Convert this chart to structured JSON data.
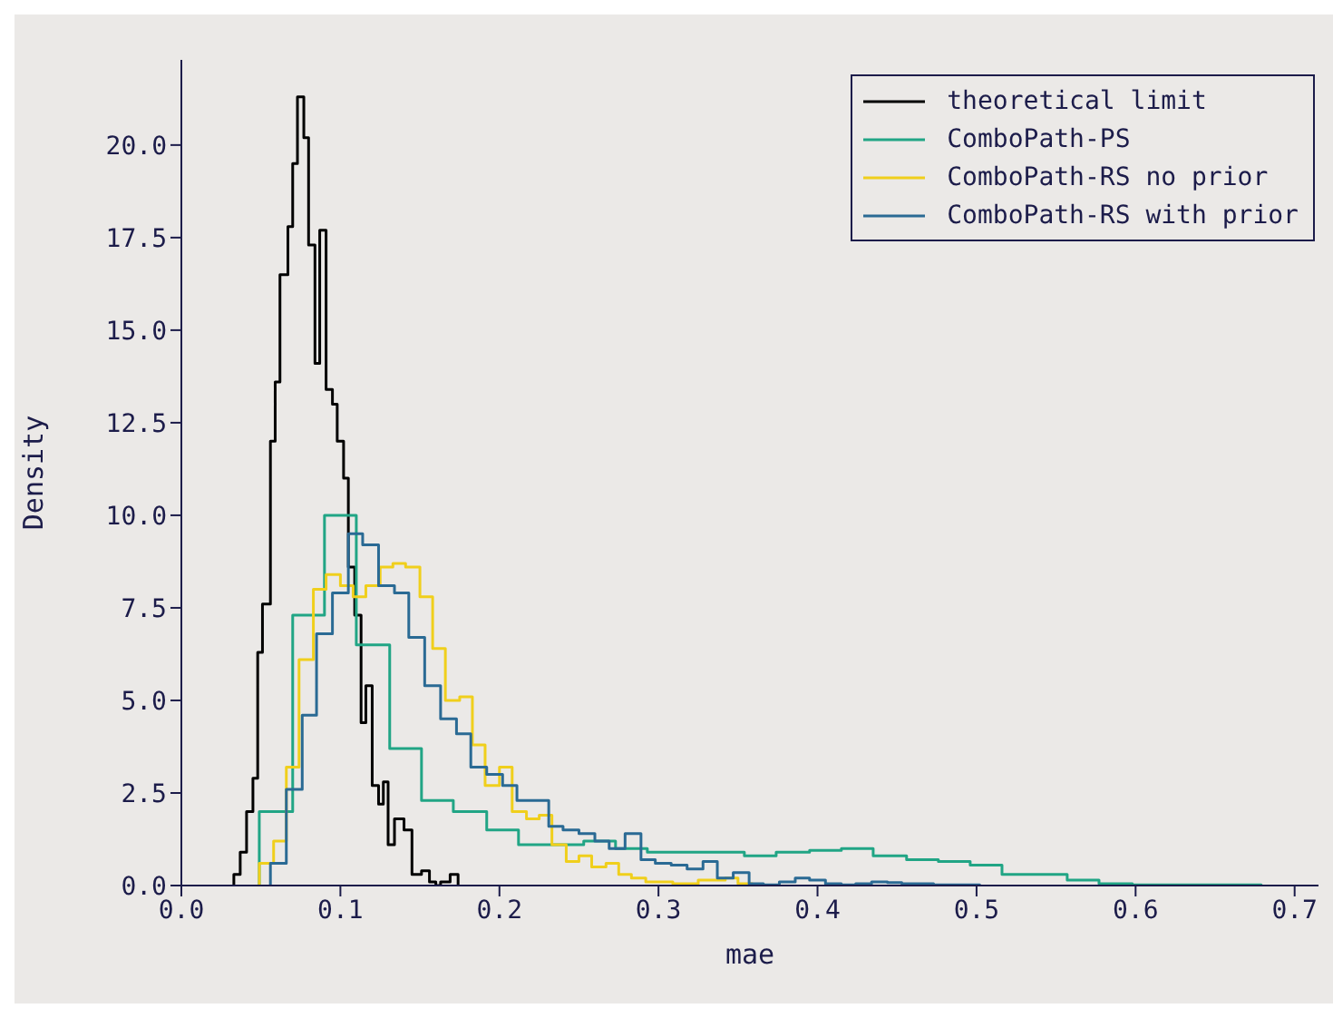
{
  "chart_data": {
    "type": "step",
    "xlabel": "mae",
    "ylabel": "Density",
    "xlim": [
      0,
      0.715
    ],
    "xticks": [
      {
        "value": 0,
        "label": "0.0"
      },
      0.1,
      0.2,
      0.3,
      0.4,
      0.5,
      0.6,
      0.7
    ],
    "ylim": [
      0,
      22.3
    ],
    "yticks": [
      {
        "value": 0,
        "label": "0.0"
      },
      2.5,
      {
        "value": 5,
        "label": "5.0"
      },
      7.5,
      {
        "value": 10,
        "label": "10.0"
      },
      12.5,
      {
        "value": 15,
        "label": "15.0"
      },
      17.5,
      {
        "value": 20,
        "label": "20.0"
      }
    ],
    "legend": "top right",
    "line_style": "solid",
    "series": [
      {
        "name": "theoretical limit",
        "color": "#000000",
        "x": [
          0.033,
          0.033,
          0.037,
          0.041,
          0.045,
          0.048,
          0.051,
          0.056,
          0.059,
          0.062,
          0.067,
          0.07,
          0.073,
          0.077,
          0.08,
          0.084,
          0.087,
          0.091,
          0.095,
          0.098,
          0.102,
          0.105,
          0.109,
          0.113,
          0.116,
          0.12,
          0.124,
          0.127,
          0.13,
          0.134,
          0.14,
          0.145,
          0.151,
          0.156,
          0.16,
          0.163,
          0.169,
          0.174
        ],
        "values": [
          0,
          0.3,
          0.9,
          2.0,
          2.9,
          6.3,
          7.6,
          12.0,
          13.6,
          16.5,
          17.8,
          19.5,
          21.3,
          20.2,
          17.3,
          14.1,
          17.7,
          13.4,
          13.0,
          12.0,
          11.0,
          8.6,
          7.3,
          4.4,
          5.4,
          2.7,
          2.2,
          2.8,
          1.1,
          1.8,
          1.5,
          0.3,
          0.4,
          0.1,
          0.0,
          0.1,
          0.3,
          0
        ]
      },
      {
        "name": "ComboPath-PS",
        "color": "#21a585",
        "x": [
          0.049,
          0.049,
          0.07,
          0.09,
          0.11,
          0.131,
          0.151,
          0.171,
          0.192,
          0.212,
          0.232,
          0.253,
          0.273,
          0.293,
          0.313,
          0.334,
          0.354,
          0.374,
          0.395,
          0.415,
          0.435,
          0.456,
          0.476,
          0.496,
          0.516,
          0.537,
          0.557,
          0.577,
          0.598,
          0.618,
          0.638,
          0.659,
          0.679
        ],
        "values": [
          0,
          2.0,
          7.3,
          10.0,
          6.5,
          3.7,
          2.3,
          2.0,
          1.5,
          1.1,
          1.1,
          1.2,
          1.0,
          0.9,
          0.9,
          0.9,
          0.8,
          0.9,
          0.95,
          1.0,
          0.8,
          0.7,
          0.65,
          0.55,
          0.3,
          0.3,
          0.15,
          0.05,
          0.02,
          0.02,
          0.02,
          0.02,
          0
        ]
      },
      {
        "name": "ComboPath-RS no prior",
        "color": "#f0cf1c",
        "x": [
          0.049,
          0.049,
          0.058,
          0.066,
          0.074,
          0.083,
          0.091,
          0.1,
          0.108,
          0.116,
          0.125,
          0.133,
          0.141,
          0.15,
          0.158,
          0.166,
          0.175,
          0.183,
          0.191,
          0.2,
          0.208,
          0.217,
          0.225,
          0.233,
          0.242,
          0.25,
          0.258,
          0.267,
          0.275,
          0.283,
          0.292,
          0.3,
          0.309,
          0.317,
          0.325,
          0.334,
          0.342,
          0.35,
          0.359
        ],
        "values": [
          0,
          0.6,
          1.2,
          3.2,
          6.1,
          8.0,
          8.4,
          8.1,
          7.8,
          8.1,
          8.6,
          8.7,
          8.6,
          7.8,
          6.4,
          5.0,
          5.1,
          3.8,
          2.7,
          3.2,
          2.0,
          1.8,
          1.9,
          1.1,
          0.65,
          0.8,
          0.5,
          0.6,
          0.3,
          0.2,
          0.1,
          0.1,
          0.05,
          0.05,
          0.15,
          0.15,
          0.2,
          0.05,
          0
        ]
      },
      {
        "name": "ComboPath-RS with prior",
        "color": "#2a6a94",
        "x": [
          0.056,
          0.056,
          0.066,
          0.076,
          0.085,
          0.095,
          0.105,
          0.114,
          0.124,
          0.134,
          0.143,
          0.153,
          0.163,
          0.173,
          0.182,
          0.192,
          0.202,
          0.211,
          0.221,
          0.231,
          0.24,
          0.25,
          0.26,
          0.269,
          0.279,
          0.289,
          0.298,
          0.308,
          0.318,
          0.328,
          0.337,
          0.347,
          0.357,
          0.366,
          0.376,
          0.386,
          0.395,
          0.405,
          0.415,
          0.424,
          0.434,
          0.444,
          0.453,
          0.463,
          0.473,
          0.482,
          0.492,
          0.502
        ],
        "values": [
          0,
          0.6,
          2.6,
          4.6,
          6.8,
          7.9,
          9.5,
          9.2,
          8.1,
          7.9,
          6.7,
          5.4,
          4.5,
          4.1,
          3.2,
          3.0,
          2.7,
          2.3,
          2.3,
          1.6,
          1.5,
          1.4,
          1.2,
          1.0,
          1.4,
          0.7,
          0.6,
          0.55,
          0.45,
          0.65,
          0.2,
          0.35,
          0.05,
          0.02,
          0.1,
          0.2,
          0.15,
          0.05,
          0.02,
          0.05,
          0.1,
          0.08,
          0.05,
          0.05,
          0.02,
          0.02,
          0.02,
          0
        ]
      }
    ]
  }
}
